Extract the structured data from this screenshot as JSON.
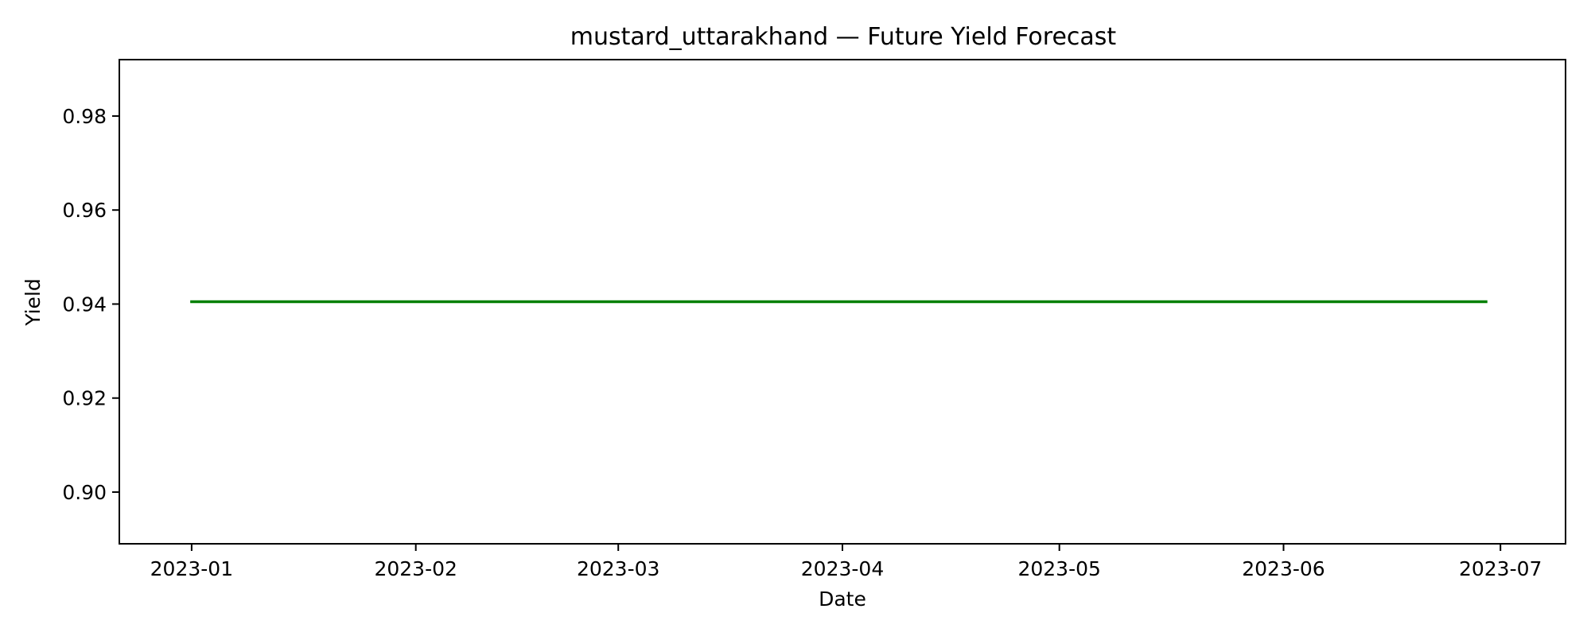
{
  "chart_data": {
    "type": "line",
    "title": "mustard_uttarakhand — Future Yield Forecast",
    "xlabel": "Date",
    "ylabel": "Yield",
    "x_ticks": [
      "2023-01",
      "2023-02",
      "2023-03",
      "2023-04",
      "2023-05",
      "2023-06",
      "2023-07"
    ],
    "y_ticks": [
      "0.90",
      "0.92",
      "0.94",
      "0.96",
      "0.98"
    ],
    "xlim": [
      "2022-12-22",
      "2023-07-10"
    ],
    "ylim": [
      0.889,
      0.992
    ],
    "grid": false,
    "legend": "none",
    "series": [
      {
        "color": "#008000",
        "x": [
          "2023-01-01",
          "2023-06-29"
        ],
        "values": [
          0.9405,
          0.9405
        ]
      }
    ]
  }
}
